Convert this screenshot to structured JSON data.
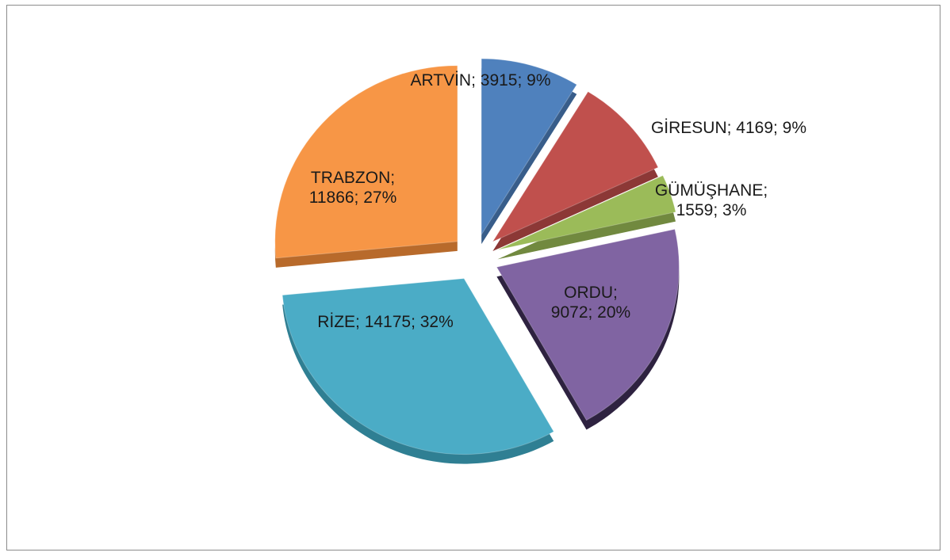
{
  "chart_data": {
    "type": "pie",
    "title": "",
    "label_format": "{category}; {value}; {percent}%",
    "slices": [
      {
        "category": "ARTVİN",
        "value": 3915,
        "percent": 9,
        "color": "#4F81BD",
        "shade": "#385d8a",
        "label_lines": [
          "ARTVİN; 3915; 9%"
        ]
      },
      {
        "category": "GİRESUN",
        "value": 4169,
        "percent": 9,
        "color": "#C0504D",
        "shade": "#8c3836",
        "label_lines": [
          "GİRESUN; 4169; 9%"
        ]
      },
      {
        "category": "GÜMÜŞHANE",
        "value": 1559,
        "percent": 3,
        "color": "#9BBB59",
        "shade": "#71893f",
        "label_lines": [
          "GÜMÜŞHANE;",
          "1559; 3%"
        ]
      },
      {
        "category": "ORDU",
        "value": 9072,
        "percent": 20,
        "color": "#8064A2",
        "shade": "#2e2240",
        "label_lines": [
          "ORDU;",
          "9072; 20%"
        ]
      },
      {
        "category": "RİZE",
        "value": 14175,
        "percent": 32,
        "color": "#4BACC6",
        "shade": "#2f7f93",
        "label_lines": [
          "RİZE; 14175; 32%"
        ]
      },
      {
        "category": "TRABZON",
        "value": 11866,
        "percent": 27,
        "color": "#F79646",
        "shade": "#b86a2b",
        "label_lines": [
          "TRABZON;",
          "11866; 27%"
        ]
      }
    ]
  }
}
